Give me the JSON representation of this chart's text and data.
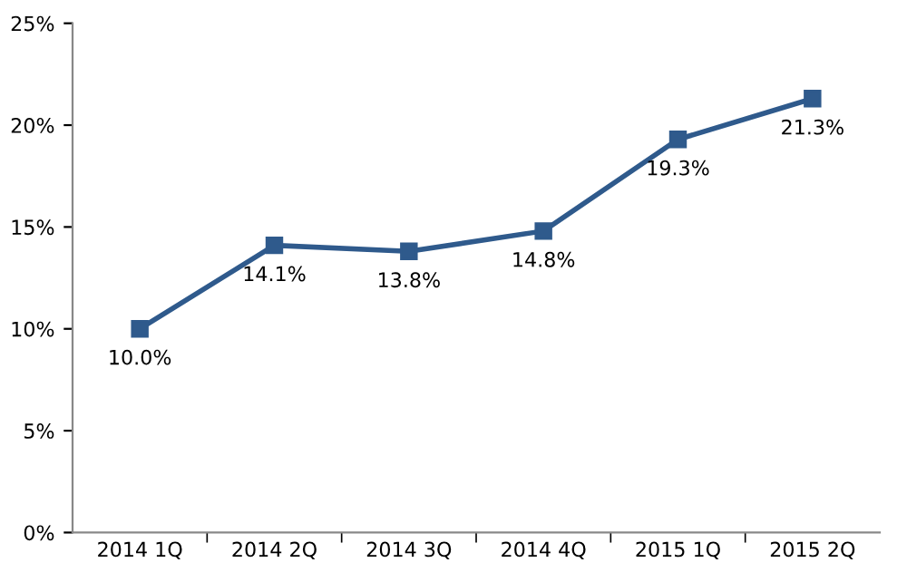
{
  "chart_data": {
    "type": "line",
    "categories": [
      "2014 1Q",
      "2014 2Q",
      "2014 3Q",
      "2014 4Q",
      "2015 1Q",
      "2015 2Q"
    ],
    "series": [
      {
        "color": "#2f5a8c",
        "values": [
          10.0,
          14.1,
          13.8,
          14.8,
          19.3,
          21.3
        ],
        "value_labels": [
          "10.0%",
          "14.1%",
          "13.8%",
          "14.8%",
          "19.3%",
          "21.3%"
        ]
      }
    ],
    "ylim": [
      0,
      25
    ],
    "yticks": [
      {
        "value": 0,
        "label": "0%"
      },
      {
        "value": 5,
        "label": "5%"
      },
      {
        "value": 10,
        "label": "10%"
      },
      {
        "value": 15,
        "label": "15%"
      },
      {
        "value": 20,
        "label": "20%"
      },
      {
        "value": 25,
        "label": "25%"
      }
    ],
    "grid": false,
    "marker": "square",
    "line_style": "solid"
  }
}
